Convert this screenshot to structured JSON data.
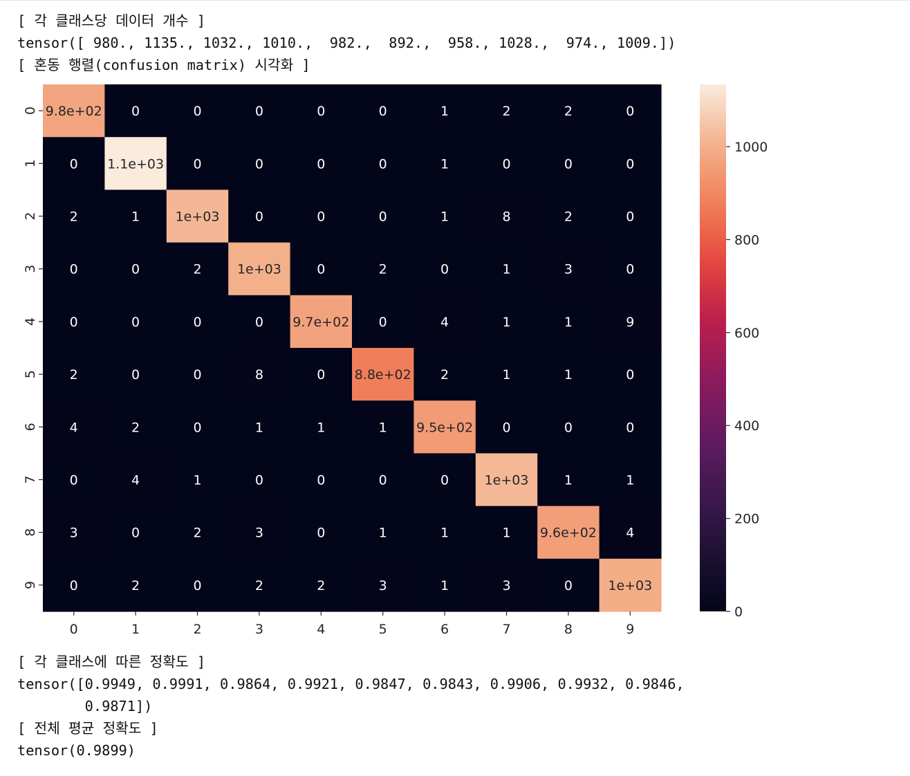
{
  "output": {
    "counts_header": "[ 각 클래스당 데이터 개수 ]",
    "counts_tensor": "tensor([ 980., 1135., 1032., 1010.,  982.,  892.,  958., 1028.,  974., 1009.])",
    "cm_header": "[ 혼동 행렬(confusion matrix) 시각화 ]",
    "acc_header": "[ 각 클래스에 따른 정확도 ]",
    "acc_tensor_line1": "tensor([0.9949, 0.9991, 0.9864, 0.9921, 0.9847, 0.9843, 0.9906, 0.9932, 0.9846,",
    "acc_tensor_line2": "        0.9871])",
    "mean_header": "[ 전체 평균 정확도 ]",
    "mean_tensor": "tensor(0.9899)"
  },
  "chart_data": {
    "type": "heatmap",
    "rows": [
      "0",
      "1",
      "2",
      "3",
      "4",
      "5",
      "6",
      "7",
      "8",
      "9"
    ],
    "cols": [
      "0",
      "1",
      "2",
      "3",
      "4",
      "5",
      "6",
      "7",
      "8",
      "9"
    ],
    "values": [
      [
        975,
        0,
        0,
        0,
        0,
        0,
        1,
        2,
        2,
        0
      ],
      [
        0,
        1134,
        0,
        0,
        0,
        0,
        1,
        0,
        0,
        0
      ],
      [
        2,
        1,
        1018,
        0,
        0,
        0,
        1,
        8,
        2,
        0
      ],
      [
        0,
        0,
        2,
        1002,
        0,
        2,
        0,
        1,
        3,
        0
      ],
      [
        0,
        0,
        0,
        0,
        967,
        0,
        4,
        1,
        1,
        9
      ],
      [
        2,
        0,
        0,
        8,
        0,
        878,
        2,
        1,
        1,
        0
      ],
      [
        4,
        2,
        0,
        1,
        1,
        1,
        949,
        0,
        0,
        0
      ],
      [
        0,
        4,
        1,
        0,
        0,
        0,
        0,
        1021,
        1,
        1
      ],
      [
        3,
        0,
        2,
        3,
        0,
        1,
        1,
        1,
        959,
        4
      ],
      [
        0,
        2,
        0,
        2,
        2,
        3,
        1,
        3,
        0,
        996
      ]
    ],
    "annotations": [
      [
        "9.8e+02",
        "0",
        "0",
        "0",
        "0",
        "0",
        "1",
        "2",
        "2",
        "0"
      ],
      [
        "0",
        "1.1e+03",
        "0",
        "0",
        "0",
        "0",
        "1",
        "0",
        "0",
        "0"
      ],
      [
        "2",
        "1",
        "1e+03",
        "0",
        "0",
        "0",
        "1",
        "8",
        "2",
        "0"
      ],
      [
        "0",
        "0",
        "2",
        "1e+03",
        "0",
        "2",
        "0",
        "1",
        "3",
        "0"
      ],
      [
        "0",
        "0",
        "0",
        "0",
        "9.7e+02",
        "0",
        "4",
        "1",
        "1",
        "9"
      ],
      [
        "2",
        "0",
        "0",
        "8",
        "0",
        "8.8e+02",
        "2",
        "1",
        "1",
        "0"
      ],
      [
        "4",
        "2",
        "0",
        "1",
        "1",
        "1",
        "9.5e+02",
        "0",
        "0",
        "0"
      ],
      [
        "0",
        "4",
        "1",
        "0",
        "0",
        "0",
        "0",
        "1e+03",
        "1",
        "1"
      ],
      [
        "3",
        "0",
        "2",
        "3",
        "0",
        "1",
        "1",
        "1",
        "9.6e+02",
        "4"
      ],
      [
        "0",
        "2",
        "0",
        "2",
        "2",
        "3",
        "1",
        "3",
        "0",
        "1e+03"
      ]
    ],
    "colorbar": {
      "min": 0,
      "max": 1134,
      "ticks": [
        0,
        200,
        400,
        600,
        800,
        1000
      ]
    },
    "colormap": "rocket",
    "colors": {
      "low": "#03051a",
      "high": "#faebdd",
      "annot_dark": "#262626",
      "annot_light": "#ffffff"
    }
  }
}
